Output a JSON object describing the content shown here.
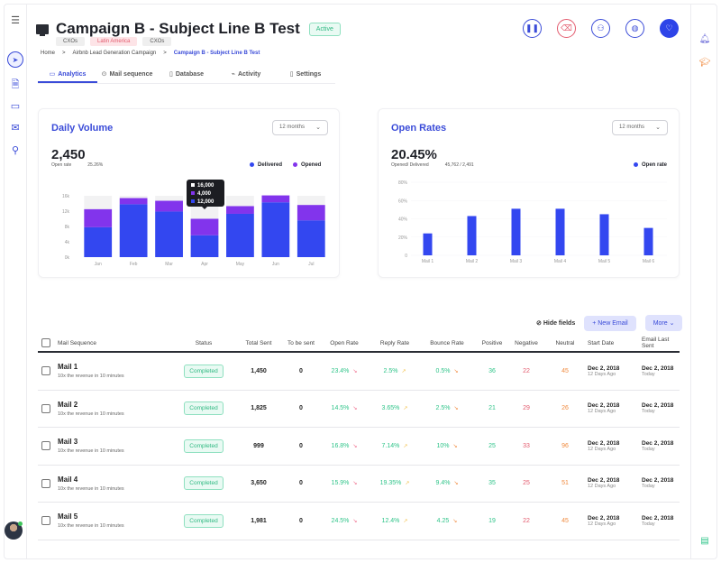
{
  "header": {
    "title": "Campaign B - Subject Line B Test",
    "status": "Active",
    "tags": [
      "CXOs",
      "Latin America",
      "CXOs"
    ],
    "breadcrumb": [
      "Home",
      "Airbnb Lead Generation Campaign",
      "Campaign B - Subject Line B Test"
    ],
    "breadcrumb_sep": ">"
  },
  "tabs": [
    {
      "label": "Analytics",
      "icon": "▭"
    },
    {
      "label": "Mail sequence",
      "icon": "⊙"
    },
    {
      "label": "Database",
      "icon": "▯"
    },
    {
      "label": "Activity",
      "icon": "⌁"
    },
    {
      "label": "Settings",
      "icon": "▯"
    }
  ],
  "actions": [
    {
      "name": "pause",
      "glyph": "❚❚"
    },
    {
      "name": "delete",
      "glyph": "🗑"
    },
    {
      "name": "add-user",
      "glyph": "👤"
    },
    {
      "name": "tag",
      "glyph": "◍"
    },
    {
      "name": "favorite",
      "glyph": "♡"
    }
  ],
  "daily_volume": {
    "title": "Daily Volume",
    "range": "12 months",
    "big_value": "2,450",
    "sub_label": "Open rate",
    "sub_value": "25.26%",
    "legend": [
      "Delivered",
      "Opened"
    ],
    "tooltip": [
      "16,000",
      "4,000",
      "12,000"
    ]
  },
  "open_rates": {
    "title": "Open Rates",
    "range": "12 months",
    "big_value": "20.45%",
    "sub_label": "Opened/ Delivered",
    "sub_value": "45,762 / 2,491",
    "legend": [
      "Open rate"
    ]
  },
  "chart_data": [
    {
      "type": "bar",
      "title": "Daily Volume",
      "stacked": true,
      "categories": [
        "Jan",
        "Feb",
        "Mar",
        "Apr",
        "May",
        "Jun",
        "Jul"
      ],
      "series": [
        {
          "name": "Delivered",
          "values": [
            7800,
            13800,
            11900,
            5700,
            11300,
            14300,
            9600
          ],
          "color": "#3347f0"
        },
        {
          "name": "Opened",
          "values": [
            4700,
            1600,
            2800,
            4300,
            2000,
            1800,
            4000
          ],
          "color": "#8234ec"
        }
      ],
      "background_max": 16000,
      "yticks": [
        "0k",
        "4k",
        "8k",
        "12k",
        "16k"
      ],
      "ylim": [
        0,
        16000
      ],
      "legend_position": "top-right",
      "xlabel": "",
      "ylabel": ""
    },
    {
      "type": "bar",
      "title": "Open Rates",
      "categories": [
        "Mail 1",
        "Mail 2",
        "Mail 3",
        "Mail 4",
        "Mail 5",
        "Mail 6"
      ],
      "values": [
        24,
        43,
        51,
        51,
        45,
        30
      ],
      "yticks": [
        "0",
        "20%",
        "40%",
        "60%",
        "80%"
      ],
      "ylim": [
        0,
        80
      ],
      "color": "#3347f0",
      "legend_position": "top-right",
      "xlabel": "",
      "ylabel": ""
    }
  ],
  "table": {
    "hide_fields": "Hide fields",
    "new_email": "+ New Email",
    "more": "More ⌄",
    "columns": [
      "Mail Sequence",
      "Status",
      "Total Sent",
      "To be sent",
      "Open Rate",
      "Reply Rate",
      "Bounce Rate",
      "Positive",
      "Negative",
      "Neutral",
      "Start Date",
      "Email Last Sent"
    ],
    "rows": [
      {
        "name": "Mail 1",
        "sub": "10x the revenue in 10 minutes",
        "status": "Completed",
        "total": "1,450",
        "tbs": "0",
        "open": "23.4%",
        "reply": "2.5%",
        "bounce": "0.5%",
        "pos": "36",
        "neg": "22",
        "neu": "45",
        "start": "Dec 2, 2018",
        "start_sub": "12 Days Ago",
        "last": "Dec 2, 2018",
        "last_sub": "Today"
      },
      {
        "name": "Mail 2",
        "sub": "10x the revenue in 10 minutes",
        "status": "Completed",
        "total": "1,825",
        "tbs": "0",
        "open": "14.5%",
        "reply": "3.65%",
        "bounce": "2.5%",
        "pos": "21",
        "neg": "29",
        "neu": "26",
        "start": "Dec 2, 2018",
        "start_sub": "12 Days Ago",
        "last": "Dec 2, 2018",
        "last_sub": "Today"
      },
      {
        "name": "Mail 3",
        "sub": "10x the revenue in 10 minutes",
        "status": "Completed",
        "total": "999",
        "tbs": "0",
        "open": "16.8%",
        "reply": "7.14%",
        "bounce": "10%",
        "pos": "25",
        "neg": "33",
        "neu": "96",
        "start": "Dec 2, 2018",
        "start_sub": "12 Days Ago",
        "last": "Dec 2, 2018",
        "last_sub": "Today"
      },
      {
        "name": "Mail 4",
        "sub": "10x the revenue in 10 minutes",
        "status": "Completed",
        "total": "3,650",
        "tbs": "0",
        "open": "15.9%",
        "reply": "19.35%",
        "bounce": "9.4%",
        "pos": "35",
        "neg": "25",
        "neu": "51",
        "start": "Dec 2, 2018",
        "start_sub": "12 Days Ago",
        "last": "Dec 2, 2018",
        "last_sub": "Today"
      },
      {
        "name": "Mail 5",
        "sub": "10x the revenue in 10 minutes",
        "status": "Completed",
        "total": "1,981",
        "tbs": "0",
        "open": "24.5%",
        "reply": "12.4%",
        "bounce": "4.25",
        "pos": "19",
        "neg": "22",
        "neu": "45",
        "start": "Dec 2, 2018",
        "start_sub": "12 Days Ago",
        "last": "Dec 2, 2018",
        "last_sub": "Today"
      }
    ]
  }
}
